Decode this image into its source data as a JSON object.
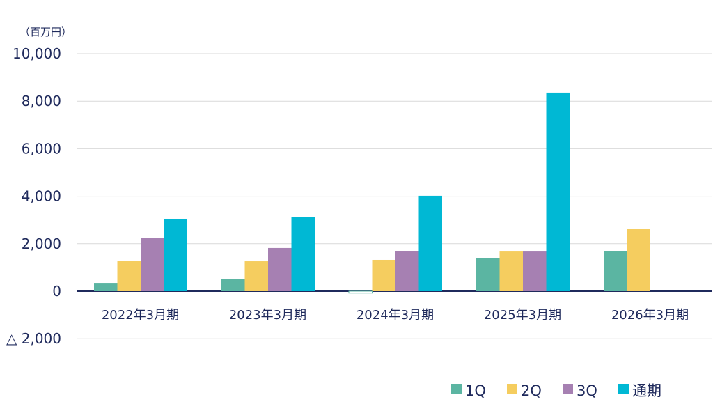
{
  "chart_data": {
    "type": "bar",
    "unit_label": "（百万円）",
    "categories": [
      "2022年3月期",
      "2023年3月期",
      "2024年3月期",
      "2025年3月期",
      "2026年3月期"
    ],
    "series": [
      {
        "name": "1Q",
        "color": "#5bb5a2",
        "values": [
          350,
          500,
          -80,
          1380,
          1700
        ]
      },
      {
        "name": "2Q",
        "color": "#f5cd5f",
        "values": [
          1290,
          1260,
          1320,
          1670,
          2610
        ]
      },
      {
        "name": "3Q",
        "color": "#a680b2",
        "values": [
          2230,
          1820,
          1700,
          1670,
          null
        ]
      },
      {
        "name": "通期",
        "color": "#00b8d4",
        "values": [
          3050,
          3110,
          4020,
          8360,
          null
        ]
      }
    ],
    "yticks": [
      10000,
      8000,
      6000,
      4000,
      2000,
      0,
      -2000
    ],
    "ytick_labels": [
      "10,000",
      "8,000",
      "6,000",
      "4,000",
      "2,000",
      "0",
      "△ 2,000"
    ],
    "ylim": [
      -2000,
      10000
    ],
    "grid": true,
    "legend": "bottom-right"
  }
}
